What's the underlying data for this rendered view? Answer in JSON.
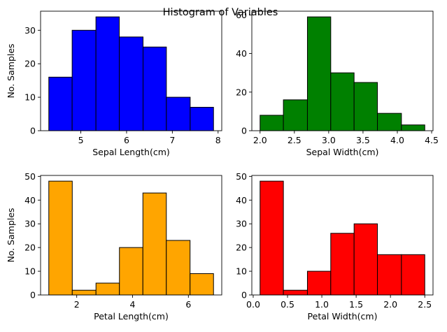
{
  "figure_title": "Histogram of Variables",
  "chart_data": [
    {
      "type": "bar",
      "subtype": "histogram",
      "color": "#0000ff",
      "xlabel": "Sepal Length(cm)",
      "ylabel": "No. Samples",
      "bin_edges": [
        4.3,
        4.81,
        5.33,
        5.84,
        6.36,
        6.87,
        7.39,
        7.9
      ],
      "values": [
        16,
        30,
        34,
        28,
        25,
        10,
        7
      ],
      "xlim": [
        4.12,
        8.08
      ],
      "ylim": [
        0,
        35.7
      ],
      "xticks": [
        5,
        6,
        7,
        8
      ],
      "yticks": [
        0,
        10,
        20,
        30
      ]
    },
    {
      "type": "bar",
      "subtype": "histogram",
      "color": "#008000",
      "xlabel": "Sepal Width(cm)",
      "ylabel": "",
      "bin_edges": [
        2.0,
        2.34,
        2.69,
        3.03,
        3.37,
        3.71,
        4.06,
        4.4
      ],
      "values": [
        8,
        16,
        59,
        30,
        25,
        9,
        3
      ],
      "xlim": [
        1.88,
        4.52
      ],
      "ylim": [
        0,
        61.95
      ],
      "xticks": [
        2.0,
        2.5,
        3.0,
        3.5,
        4.0,
        4.5
      ],
      "yticks": [
        0,
        20,
        40,
        60
      ]
    },
    {
      "type": "bar",
      "subtype": "histogram",
      "color": "#ffa500",
      "xlabel": "Petal Length(cm)",
      "ylabel": "No. Samples",
      "bin_edges": [
        1.0,
        1.84,
        2.69,
        3.53,
        4.37,
        5.21,
        6.06,
        6.9
      ],
      "values": [
        48,
        2,
        5,
        20,
        43,
        23,
        9
      ],
      "xlim": [
        0.705,
        7.195
      ],
      "ylim": [
        0,
        50.4
      ],
      "xticks": [
        2,
        4,
        6
      ],
      "yticks": [
        0,
        10,
        20,
        30,
        40,
        50
      ]
    },
    {
      "type": "bar",
      "subtype": "histogram",
      "color": "#ff0000",
      "xlabel": "Petal Width(cm)",
      "ylabel": "",
      "bin_edges": [
        0.1,
        0.44,
        0.79,
        1.13,
        1.47,
        1.81,
        2.16,
        2.5
      ],
      "values": [
        48,
        2,
        10,
        26,
        30,
        17,
        17
      ],
      "xlim": [
        -0.02,
        2.62
      ],
      "ylim": [
        0,
        50.4
      ],
      "xticks": [
        0.0,
        0.5,
        1.0,
        1.5,
        2.0,
        2.5
      ],
      "yticks": [
        0,
        10,
        20,
        30,
        40,
        50
      ]
    }
  ]
}
